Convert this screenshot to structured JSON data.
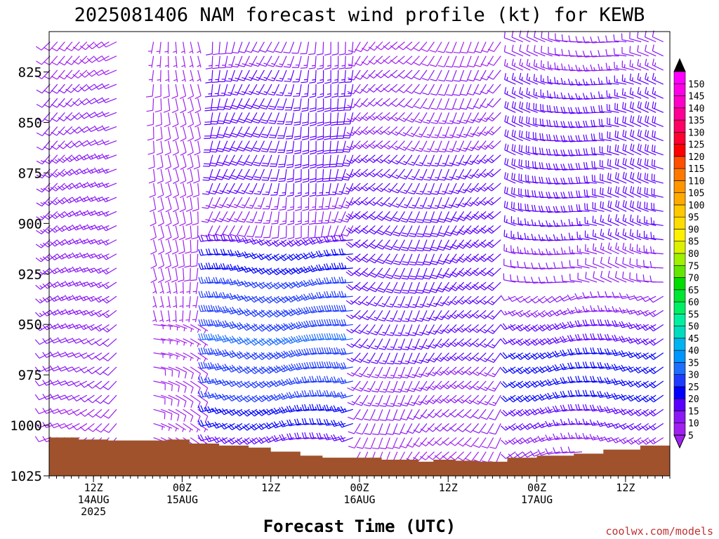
{
  "chart_data": {
    "type": "wind-barb-profile",
    "title": "2025081406 NAM forecast wind profile (kt) for KEWB",
    "xlabel": "Forecast Time (UTC)",
    "ylabel": "",
    "y_axis": {
      "scale": "linear",
      "reversed": true,
      "range_hpa": [
        805,
        1025
      ],
      "ticks": [
        825,
        850,
        875,
        900,
        925,
        950,
        975,
        1000,
        1025
      ]
    },
    "x_axis": {
      "range_hours": [
        0,
        84
      ],
      "tick_step_hours": 1,
      "major_ticks": [
        {
          "hour": 6,
          "line1": "12Z",
          "line2": "14AUG",
          "line3": "2025"
        },
        {
          "hour": 18,
          "line1": "00Z",
          "line2": "15AUG",
          "line3": ""
        },
        {
          "hour": 30,
          "line1": "12Z",
          "line2": "",
          "line3": ""
        },
        {
          "hour": 42,
          "line1": "00Z",
          "line2": "16AUG",
          "line3": ""
        },
        {
          "hour": 54,
          "line1": "12Z",
          "line2": "",
          "line3": ""
        },
        {
          "hour": 66,
          "line1": "00Z",
          "line2": "17AUG",
          "line3": ""
        },
        {
          "hour": 78,
          "line1": "12Z",
          "line2": "",
          "line3": ""
        }
      ]
    },
    "surface_pressure_hpa": [
      {
        "hour": 0,
        "p": 1006
      },
      {
        "hour": 4,
        "p": 1007
      },
      {
        "hour": 8,
        "p": 1007.5
      },
      {
        "hour": 16,
        "p": 1007
      },
      {
        "hour": 19,
        "p": 1009
      },
      {
        "hour": 23,
        "p": 1010
      },
      {
        "hour": 27,
        "p": 1011
      },
      {
        "hour": 30,
        "p": 1013
      },
      {
        "hour": 34,
        "p": 1015
      },
      {
        "hour": 37,
        "p": 1016
      },
      {
        "hour": 45,
        "p": 1017
      },
      {
        "hour": 50,
        "p": 1018
      },
      {
        "hour": 52,
        "p": 1017
      },
      {
        "hour": 55,
        "p": 1017.5
      },
      {
        "hour": 58,
        "p": 1018
      },
      {
        "hour": 62,
        "p": 1016
      },
      {
        "hour": 66,
        "p": 1015
      },
      {
        "hour": 71,
        "p": 1014
      },
      {
        "hour": 75,
        "p": 1012
      },
      {
        "hour": 80,
        "p": 1010
      },
      {
        "hour": 84,
        "p": 1009
      }
    ],
    "wind_regimes": [
      {
        "hours": [
          0,
          10
        ],
        "p": [
          805,
          1006
        ],
        "dir_deg": 235,
        "speed_kt": [
          8,
          14
        ]
      },
      {
        "hours": [
          14,
          21
        ],
        "p": [
          805,
          945
        ],
        "dir_deg": 180,
        "speed_kt": [
          5,
          10
        ]
      },
      {
        "hours": [
          14,
          21
        ],
        "p": [
          945,
          1015
        ],
        "dir_deg": 110,
        "speed_kt": [
          4,
          8
        ]
      },
      {
        "hours": [
          22,
          42
        ],
        "p": [
          805,
          900
        ],
        "dir_deg": 195,
        "speed_kt": [
          10,
          20
        ]
      },
      {
        "hours": [
          22,
          42
        ],
        "p": [
          900,
          1010
        ],
        "dir_deg": 250,
        "speed_kt": [
          15,
          30
        ]
      },
      {
        "hours": [
          42,
          62
        ],
        "p": [
          805,
          1017
        ],
        "dir_deg": 215,
        "speed_kt": [
          8,
          18
        ]
      },
      {
        "hours": [
          63,
          84
        ],
        "p": [
          805,
          930
        ],
        "dir_deg": 280,
        "speed_kt": [
          10,
          20
        ]
      },
      {
        "hours": [
          63,
          84
        ],
        "p": [
          930,
          1012
        ],
        "dir_deg": 250,
        "speed_kt": [
          10,
          22
        ]
      }
    ],
    "colorbar": {
      "label_values": [
        5,
        10,
        15,
        20,
        25,
        30,
        35,
        40,
        45,
        50,
        55,
        60,
        65,
        70,
        75,
        80,
        85,
        90,
        95,
        100,
        105,
        110,
        115,
        120,
        125,
        130,
        135,
        140,
        145,
        150
      ],
      "colors": [
        "#a020f0",
        "#8a19f5",
        "#5a00ff",
        "#0000ff",
        "#1e3cff",
        "#1e6eff",
        "#0096ff",
        "#00b4f0",
        "#00dcbe",
        "#00f0a0",
        "#00f064",
        "#00e632",
        "#00dc00",
        "#64e600",
        "#a0f000",
        "#dcf000",
        "#fff000",
        "#ffdc00",
        "#ffc800",
        "#ffaa00",
        "#ff9600",
        "#ff7800",
        "#ff5000",
        "#ff0000",
        "#ff0032",
        "#ff0064",
        "#ff0096",
        "#ff00c8",
        "#ff00e6",
        "#ff00ff"
      ],
      "under_color": "#a020f0",
      "over_color": "#000000"
    },
    "grid": false
  },
  "footer": {
    "credit": "coolwx.com/models"
  }
}
